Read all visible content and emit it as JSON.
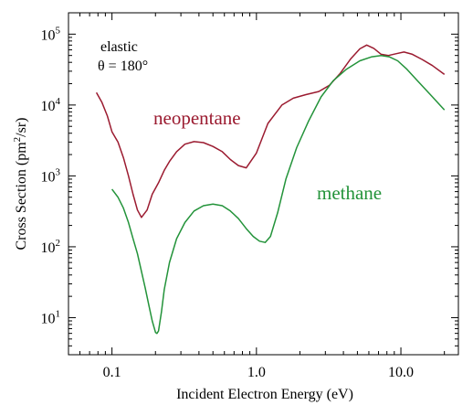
{
  "chart_data": {
    "type": "line",
    "title": "",
    "xlabel": "Incident Electron Energy (eV)",
    "ylabel_main": "Cross Section (pm",
    "ylabel_sup": "2",
    "ylabel_tail": "/sr)",
    "x_scale": "log",
    "y_scale": "log",
    "xlim": [
      0.05,
      25
    ],
    "ylim": [
      3,
      200000
    ],
    "x_ticks": [
      {
        "v": 0.1,
        "label": "0.1"
      },
      {
        "v": 1,
        "label": "1.0"
      },
      {
        "v": 10,
        "label": "10.0"
      }
    ],
    "y_ticks": [
      {
        "v": 10,
        "base": "10",
        "exp": "1"
      },
      {
        "v": 100,
        "base": "10",
        "exp": "2"
      },
      {
        "v": 1000,
        "base": "10",
        "exp": "3"
      },
      {
        "v": 10000,
        "base": "10",
        "exp": "4"
      },
      {
        "v": 100000,
        "base": "10",
        "exp": "5"
      }
    ],
    "annotation_line1": "elastic",
    "annotation_line2": "θ = 180°",
    "series": [
      {
        "name": "neopentane",
        "color": "#9b1b30",
        "x": [
          0.078,
          0.085,
          0.093,
          0.1,
          0.11,
          0.12,
          0.13,
          0.14,
          0.15,
          0.16,
          0.175,
          0.19,
          0.21,
          0.23,
          0.25,
          0.28,
          0.32,
          0.37,
          0.43,
          0.5,
          0.58,
          0.66,
          0.75,
          0.85,
          1.0,
          1.2,
          1.5,
          1.8,
          2.2,
          2.7,
          3.2,
          3.8,
          4.5,
          5.2,
          5.8,
          6.5,
          7.3,
          8.2,
          9.3,
          10.5,
          12,
          14,
          16.5,
          20
        ],
        "y": [
          15000,
          11000,
          7000,
          4200,
          3000,
          1800,
          1000,
          550,
          330,
          260,
          330,
          550,
          800,
          1200,
          1600,
          2200,
          2800,
          3050,
          2950,
          2600,
          2200,
          1700,
          1400,
          1300,
          2100,
          5500,
          10000,
          12500,
          14000,
          15500,
          19000,
          28000,
          45000,
          62000,
          70000,
          63000,
          52000,
          50000,
          53000,
          56000,
          52000,
          44000,
          36000,
          27000
        ]
      },
      {
        "name": "methane",
        "color": "#23933a",
        "x": [
          0.1,
          0.11,
          0.12,
          0.13,
          0.14,
          0.15,
          0.16,
          0.17,
          0.18,
          0.19,
          0.2,
          0.205,
          0.21,
          0.22,
          0.23,
          0.25,
          0.28,
          0.32,
          0.37,
          0.43,
          0.5,
          0.58,
          0.66,
          0.75,
          0.85,
          0.95,
          1.05,
          1.15,
          1.25,
          1.4,
          1.6,
          1.9,
          2.3,
          2.8,
          3.4,
          4.2,
          5.2,
          6.3,
          7.3,
          8.3,
          9.5,
          11,
          13,
          16,
          20
        ],
        "y": [
          650,
          500,
          350,
          220,
          130,
          80,
          45,
          26,
          15,
          9,
          6.2,
          6.0,
          6.5,
          12,
          25,
          60,
          130,
          220,
          320,
          380,
          400,
          380,
          320,
          250,
          180,
          140,
          120,
          115,
          140,
          300,
          900,
          2500,
          6000,
          13000,
          22000,
          32000,
          42000,
          48000,
          50000,
          48000,
          42000,
          32000,
          22000,
          14000,
          8500
        ]
      }
    ]
  }
}
